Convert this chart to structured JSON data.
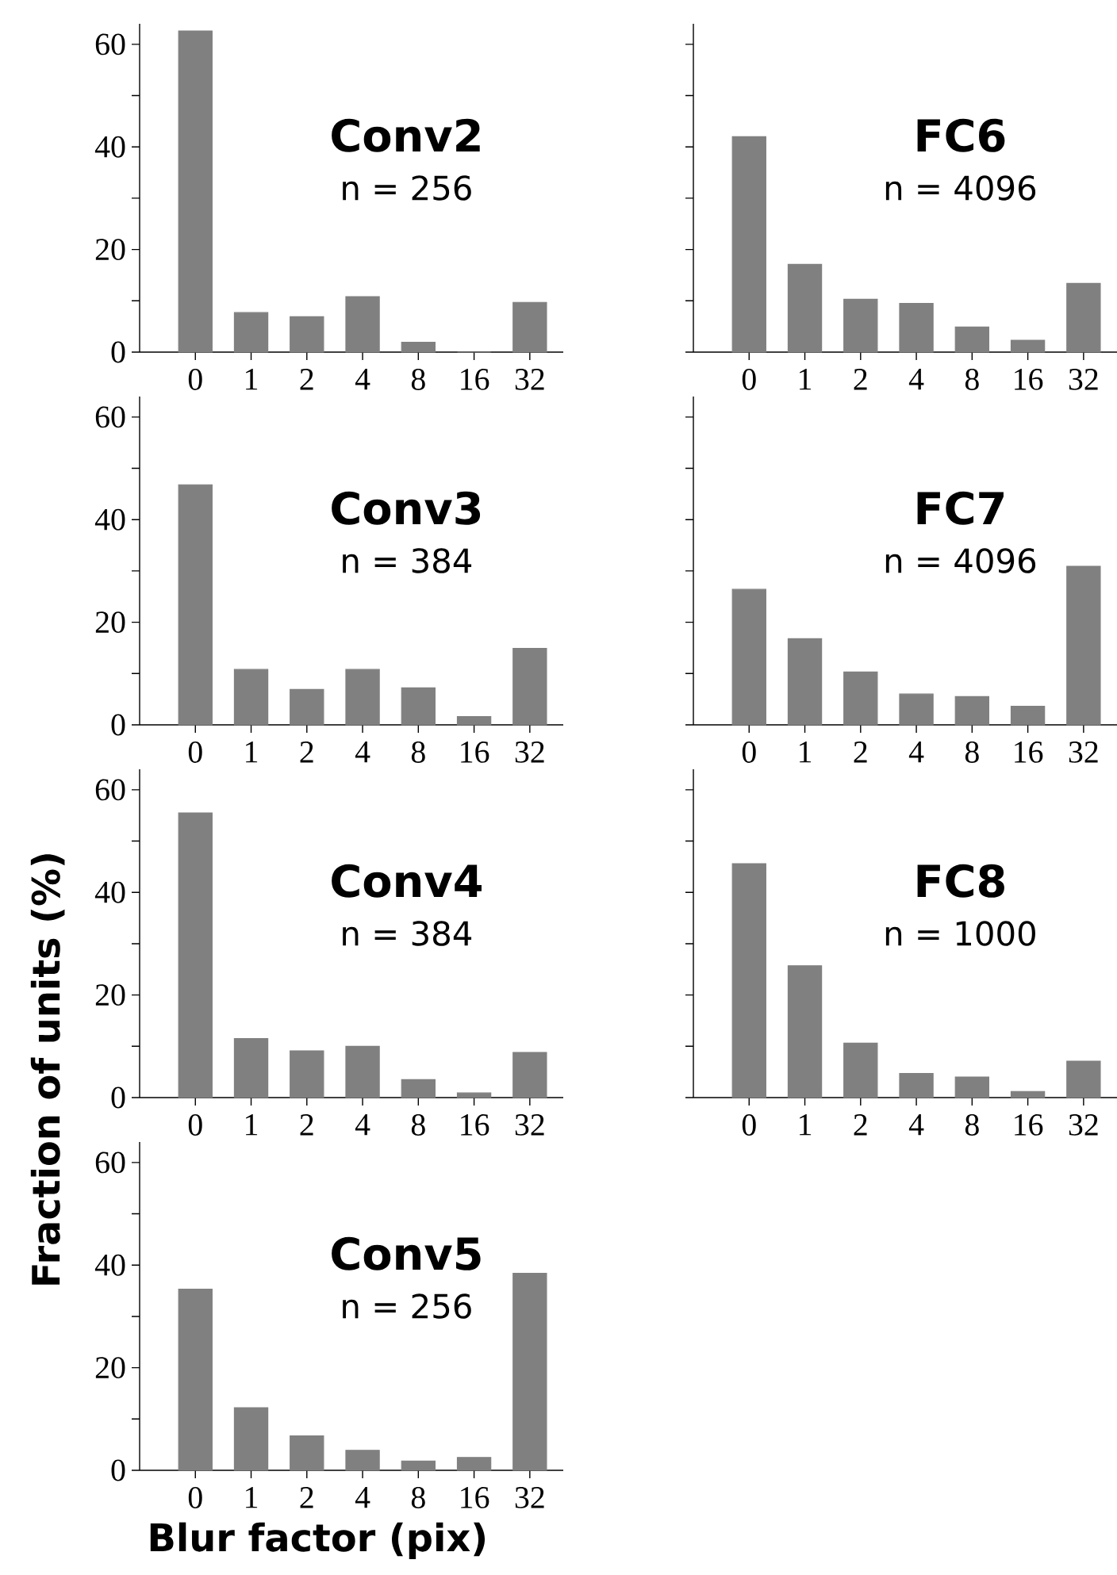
{
  "chart_data": [
    {
      "type": "bar",
      "title": "Conv2",
      "subtitle": "n = 256",
      "categories": [
        "0",
        "1",
        "2",
        "4",
        "8",
        "16",
        "32"
      ],
      "values": [
        62.6,
        7.7,
        6.9,
        10.8,
        1.9,
        0,
        9.7
      ],
      "color": "#808080",
      "ylim": [
        0,
        64
      ],
      "yticks": [
        0,
        {
          "value": 10,
          "label": null
        },
        20,
        {
          "value": 30,
          "label": null
        },
        40,
        {
          "value": 50,
          "label": null
        },
        60
      ]
    },
    {
      "type": "bar",
      "title": "FC6",
      "subtitle": "n = 4096",
      "categories": [
        "0",
        "1",
        "2",
        "4",
        "8",
        "16",
        "32"
      ],
      "values": [
        42,
        17.1,
        10.3,
        9.5,
        4.9,
        2.3,
        13.4
      ],
      "color": "#808080",
      "ylim": [
        0,
        64
      ],
      "yticks": [
        0,
        {
          "value": 10,
          "label": null
        },
        20,
        {
          "value": 30,
          "label": null
        },
        40,
        {
          "value": 50,
          "label": null
        },
        60
      ],
      "tick_labels": "x"
    },
    {
      "type": "bar",
      "title": "Conv3",
      "subtitle": "n = 384",
      "categories": [
        "0",
        "1",
        "2",
        "4",
        "8",
        "16",
        "32"
      ],
      "values": [
        46.8,
        10.8,
        6.9,
        10.8,
        7.2,
        1.6,
        14.9
      ],
      "color": "#808080",
      "ylim": [
        0,
        64
      ],
      "yticks": [
        0,
        {
          "value": 10,
          "label": null
        },
        20,
        {
          "value": 30,
          "label": null
        },
        40,
        {
          "value": 50,
          "label": null
        },
        60
      ]
    },
    {
      "type": "bar",
      "title": "FC7",
      "subtitle": "n = 4096",
      "categories": [
        "0",
        "1",
        "2",
        "4",
        "8",
        "16",
        "32"
      ],
      "values": [
        26.4,
        16.8,
        10.3,
        6,
        5.5,
        3.6,
        30.9
      ],
      "color": "#808080",
      "ylim": [
        0,
        64
      ],
      "yticks": [
        0,
        {
          "value": 10,
          "label": null
        },
        20,
        {
          "value": 30,
          "label": null
        },
        40,
        {
          "value": 50,
          "label": null
        },
        60
      ],
      "tick_labels": "x"
    },
    {
      "type": "bar",
      "title": "Conv4",
      "subtitle": "n = 384",
      "categories": [
        "0",
        "1",
        "2",
        "4",
        "8",
        "16",
        "32"
      ],
      "values": [
        55.5,
        11.5,
        9.1,
        10,
        3.5,
        0.9,
        8.8
      ],
      "color": "#808080",
      "ylim": [
        0,
        64
      ],
      "yticks": [
        0,
        {
          "value": 10,
          "label": null
        },
        20,
        {
          "value": 30,
          "label": null
        },
        40,
        {
          "value": 50,
          "label": null
        },
        60
      ]
    },
    {
      "type": "bar",
      "title": "FC8",
      "subtitle": "n = 1000",
      "categories": [
        "0",
        "1",
        "2",
        "4",
        "8",
        "16",
        "32"
      ],
      "values": [
        45.6,
        25.7,
        10.6,
        4.7,
        4,
        1.2,
        7.1
      ],
      "color": "#808080",
      "ylim": [
        0,
        64
      ],
      "yticks": [
        0,
        {
          "value": 10,
          "label": null
        },
        20,
        {
          "value": 30,
          "label": null
        },
        40,
        {
          "value": 50,
          "label": null
        },
        60
      ],
      "tick_labels": "x"
    },
    {
      "type": "bar",
      "title": "Conv5",
      "subtitle": "n = 256",
      "xlabel": "Blur factor (pix)",
      "ylabel": "Fraction of units (%)",
      "categories": [
        "0",
        "1",
        "2",
        "4",
        "8",
        "16",
        "32"
      ],
      "values": [
        35.3,
        12.2,
        6.7,
        3.9,
        1.8,
        2.5,
        38.4
      ],
      "color": "#808080",
      "ylim": [
        0,
        64
      ],
      "yticks": [
        0,
        {
          "value": 10,
          "label": null
        },
        20,
        {
          "value": 30,
          "label": null
        },
        40,
        {
          "value": 50,
          "label": null
        },
        60
      ]
    }
  ]
}
